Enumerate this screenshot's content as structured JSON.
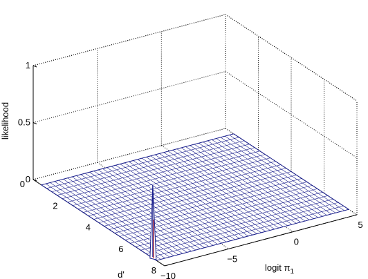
{
  "chart_data": {
    "type": "surface",
    "title": "",
    "xlabel": "d'",
    "ylabel_main": "logit π",
    "ylabel_sub": "1",
    "zlabel": "likelihood",
    "x_ticks": [
      "0",
      "2",
      "4",
      "6",
      "8"
    ],
    "y_ticks": [
      "−10",
      "−5",
      "0",
      "5"
    ],
    "z_ticks": [
      "0",
      "0.5",
      "1"
    ],
    "xlim": [
      0,
      8
    ],
    "ylim": [
      -10,
      5
    ],
    "zlim": [
      0,
      1
    ],
    "grid": true,
    "surface": {
      "x_range": [
        0.5,
        7.5
      ],
      "y_range": [
        -10,
        5
      ],
      "baseline_value": 0,
      "peak": {
        "x": 7.2,
        "y": -9.9,
        "z": 0.63
      },
      "mesh_color": "#1a1f8c"
    }
  }
}
